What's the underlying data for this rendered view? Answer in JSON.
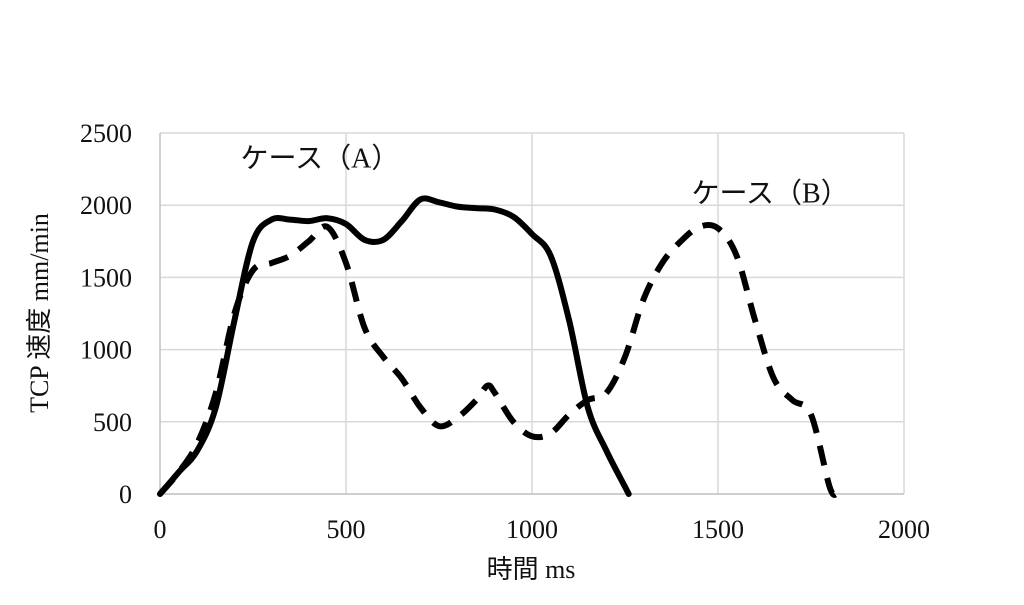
{
  "chart_data": {
    "type": "line",
    "title": "",
    "xlabel": "時間 ms",
    "ylabel": "TCP 速度 mm/min",
    "xlim": [
      0,
      2000
    ],
    "ylim": [
      0,
      2500
    ],
    "xticks": [
      0,
      500,
      1000,
      1500,
      2000
    ],
    "yticks": [
      0,
      500,
      1000,
      1500,
      2000,
      2500
    ],
    "xtick_labels": [
      "0",
      "500",
      "1000",
      "1500",
      "2000"
    ],
    "ytick_labels": [
      "0",
      "500",
      "1000",
      "1500",
      "2000",
      "2500"
    ],
    "grid": true,
    "colors": {
      "series": "#000000",
      "grid": "#d9d9d9",
      "axis": "#bfbfbf"
    },
    "series": [
      {
        "name": "ケース（A）",
        "style": "solid",
        "x": [
          0,
          50,
          100,
          150,
          200,
          250,
          300,
          350,
          400,
          450,
          500,
          550,
          600,
          650,
          700,
          750,
          800,
          850,
          900,
          950,
          1000,
          1050,
          1100,
          1150,
          1200,
          1250,
          1260
        ],
        "y": [
          0,
          150,
          300,
          600,
          1200,
          1750,
          1900,
          1900,
          1890,
          1910,
          1870,
          1760,
          1760,
          1890,
          2040,
          2020,
          1990,
          1980,
          1970,
          1920,
          1800,
          1650,
          1200,
          600,
          300,
          50,
          0
        ]
      },
      {
        "name": "ケース（B）",
        "style": "dashed",
        "x": [
          0,
          50,
          100,
          150,
          200,
          250,
          300,
          350,
          400,
          450,
          500,
          550,
          600,
          650,
          700,
          750,
          800,
          850,
          880,
          900,
          950,
          1000,
          1050,
          1100,
          1150,
          1200,
          1250,
          1300,
          1350,
          1400,
          1450,
          1500,
          1550,
          1600,
          1650,
          1700,
          1750,
          1800,
          1820
        ],
        "y": [
          0,
          150,
          350,
          700,
          1250,
          1550,
          1600,
          1650,
          1750,
          1850,
          1600,
          1150,
          950,
          800,
          600,
          470,
          530,
          650,
          750,
          700,
          500,
          400,
          420,
          550,
          650,
          700,
          950,
          1350,
          1600,
          1750,
          1850,
          1840,
          1650,
          1200,
          800,
          650,
          550,
          50,
          0
        ]
      }
    ],
    "annotations": [
      {
        "text": "ケース（A）",
        "x": 430,
        "y": 2260
      },
      {
        "text": "ケース（B）",
        "x": 1640,
        "y": 2020
      }
    ]
  }
}
